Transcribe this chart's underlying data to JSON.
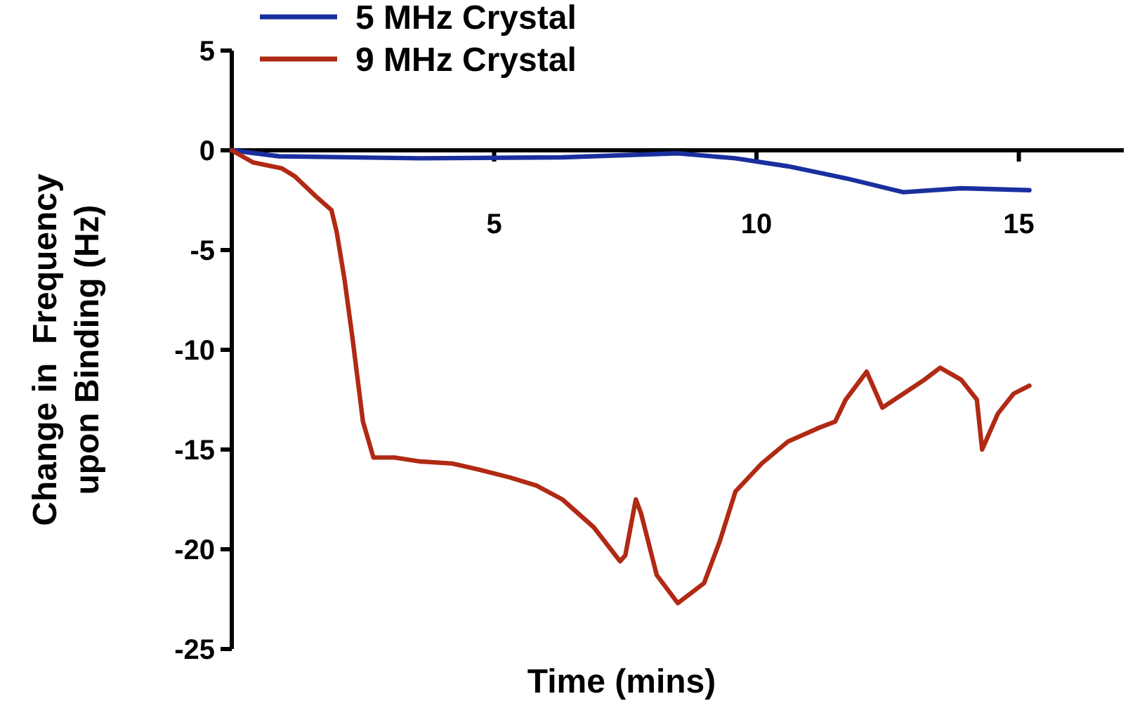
{
  "chart_data": {
    "type": "line",
    "xlabel": "Time (mins)",
    "ylabel": "Change in  Frequency\nupon Binding (Hz)",
    "xlim": [
      0,
      17
    ],
    "ylim": [
      -25,
      5
    ],
    "xticks": [
      5,
      10,
      15
    ],
    "yticks": [
      5,
      0,
      -5,
      -10,
      -15,
      -20,
      -25
    ],
    "legend": "top left",
    "grid": false,
    "line_style": "solid",
    "series": [
      {
        "name": "5 MHz Crystal",
        "color": "#1a2f9e",
        "x": [
          0,
          0.9,
          3.6,
          6.3,
          8.5,
          9.6,
          10.6,
          11.7,
          12.8,
          13.9,
          15.2
        ],
        "values": [
          0,
          -0.3,
          -0.4,
          -0.35,
          -0.15,
          -0.4,
          -0.8,
          -1.4,
          -2.1,
          -1.9,
          -2.0
        ]
      },
      {
        "name": "9 MHz Crystal",
        "color": "#b02a14",
        "x": [
          0,
          0.4,
          0.95,
          1.2,
          1.6,
          1.9,
          2.0,
          2.15,
          2.3,
          2.5,
          2.7,
          3.1,
          3.6,
          4.2,
          4.7,
          5.3,
          5.8,
          6.3,
          6.9,
          7.4,
          7.5,
          7.7,
          7.8,
          8.1,
          8.5,
          9.0,
          9.3,
          9.6,
          10.1,
          10.6,
          11.2,
          11.5,
          11.7,
          12.1,
          12.4,
          12.8,
          13.2,
          13.5,
          13.9,
          14.2,
          14.3,
          14.6,
          14.9,
          15.2
        ],
        "values": [
          0,
          -0.6,
          -0.9,
          -1.3,
          -2.3,
          -3,
          -4.1,
          -6.5,
          -9.4,
          -13.6,
          -15.4,
          -15.4,
          -15.6,
          -15.7,
          -16,
          -16.4,
          -16.8,
          -17.5,
          -18.9,
          -20.6,
          -20.3,
          -17.5,
          -18.2,
          -21.3,
          -22.7,
          -21.7,
          -19.6,
          -17.1,
          -15.7,
          -14.6,
          -13.9,
          -13.6,
          -12.5,
          -11.1,
          -12.9,
          -12.2,
          -11.5,
          -10.9,
          -11.5,
          -12.5,
          -15,
          -13.2,
          -12.2,
          -11.8
        ]
      }
    ]
  }
}
